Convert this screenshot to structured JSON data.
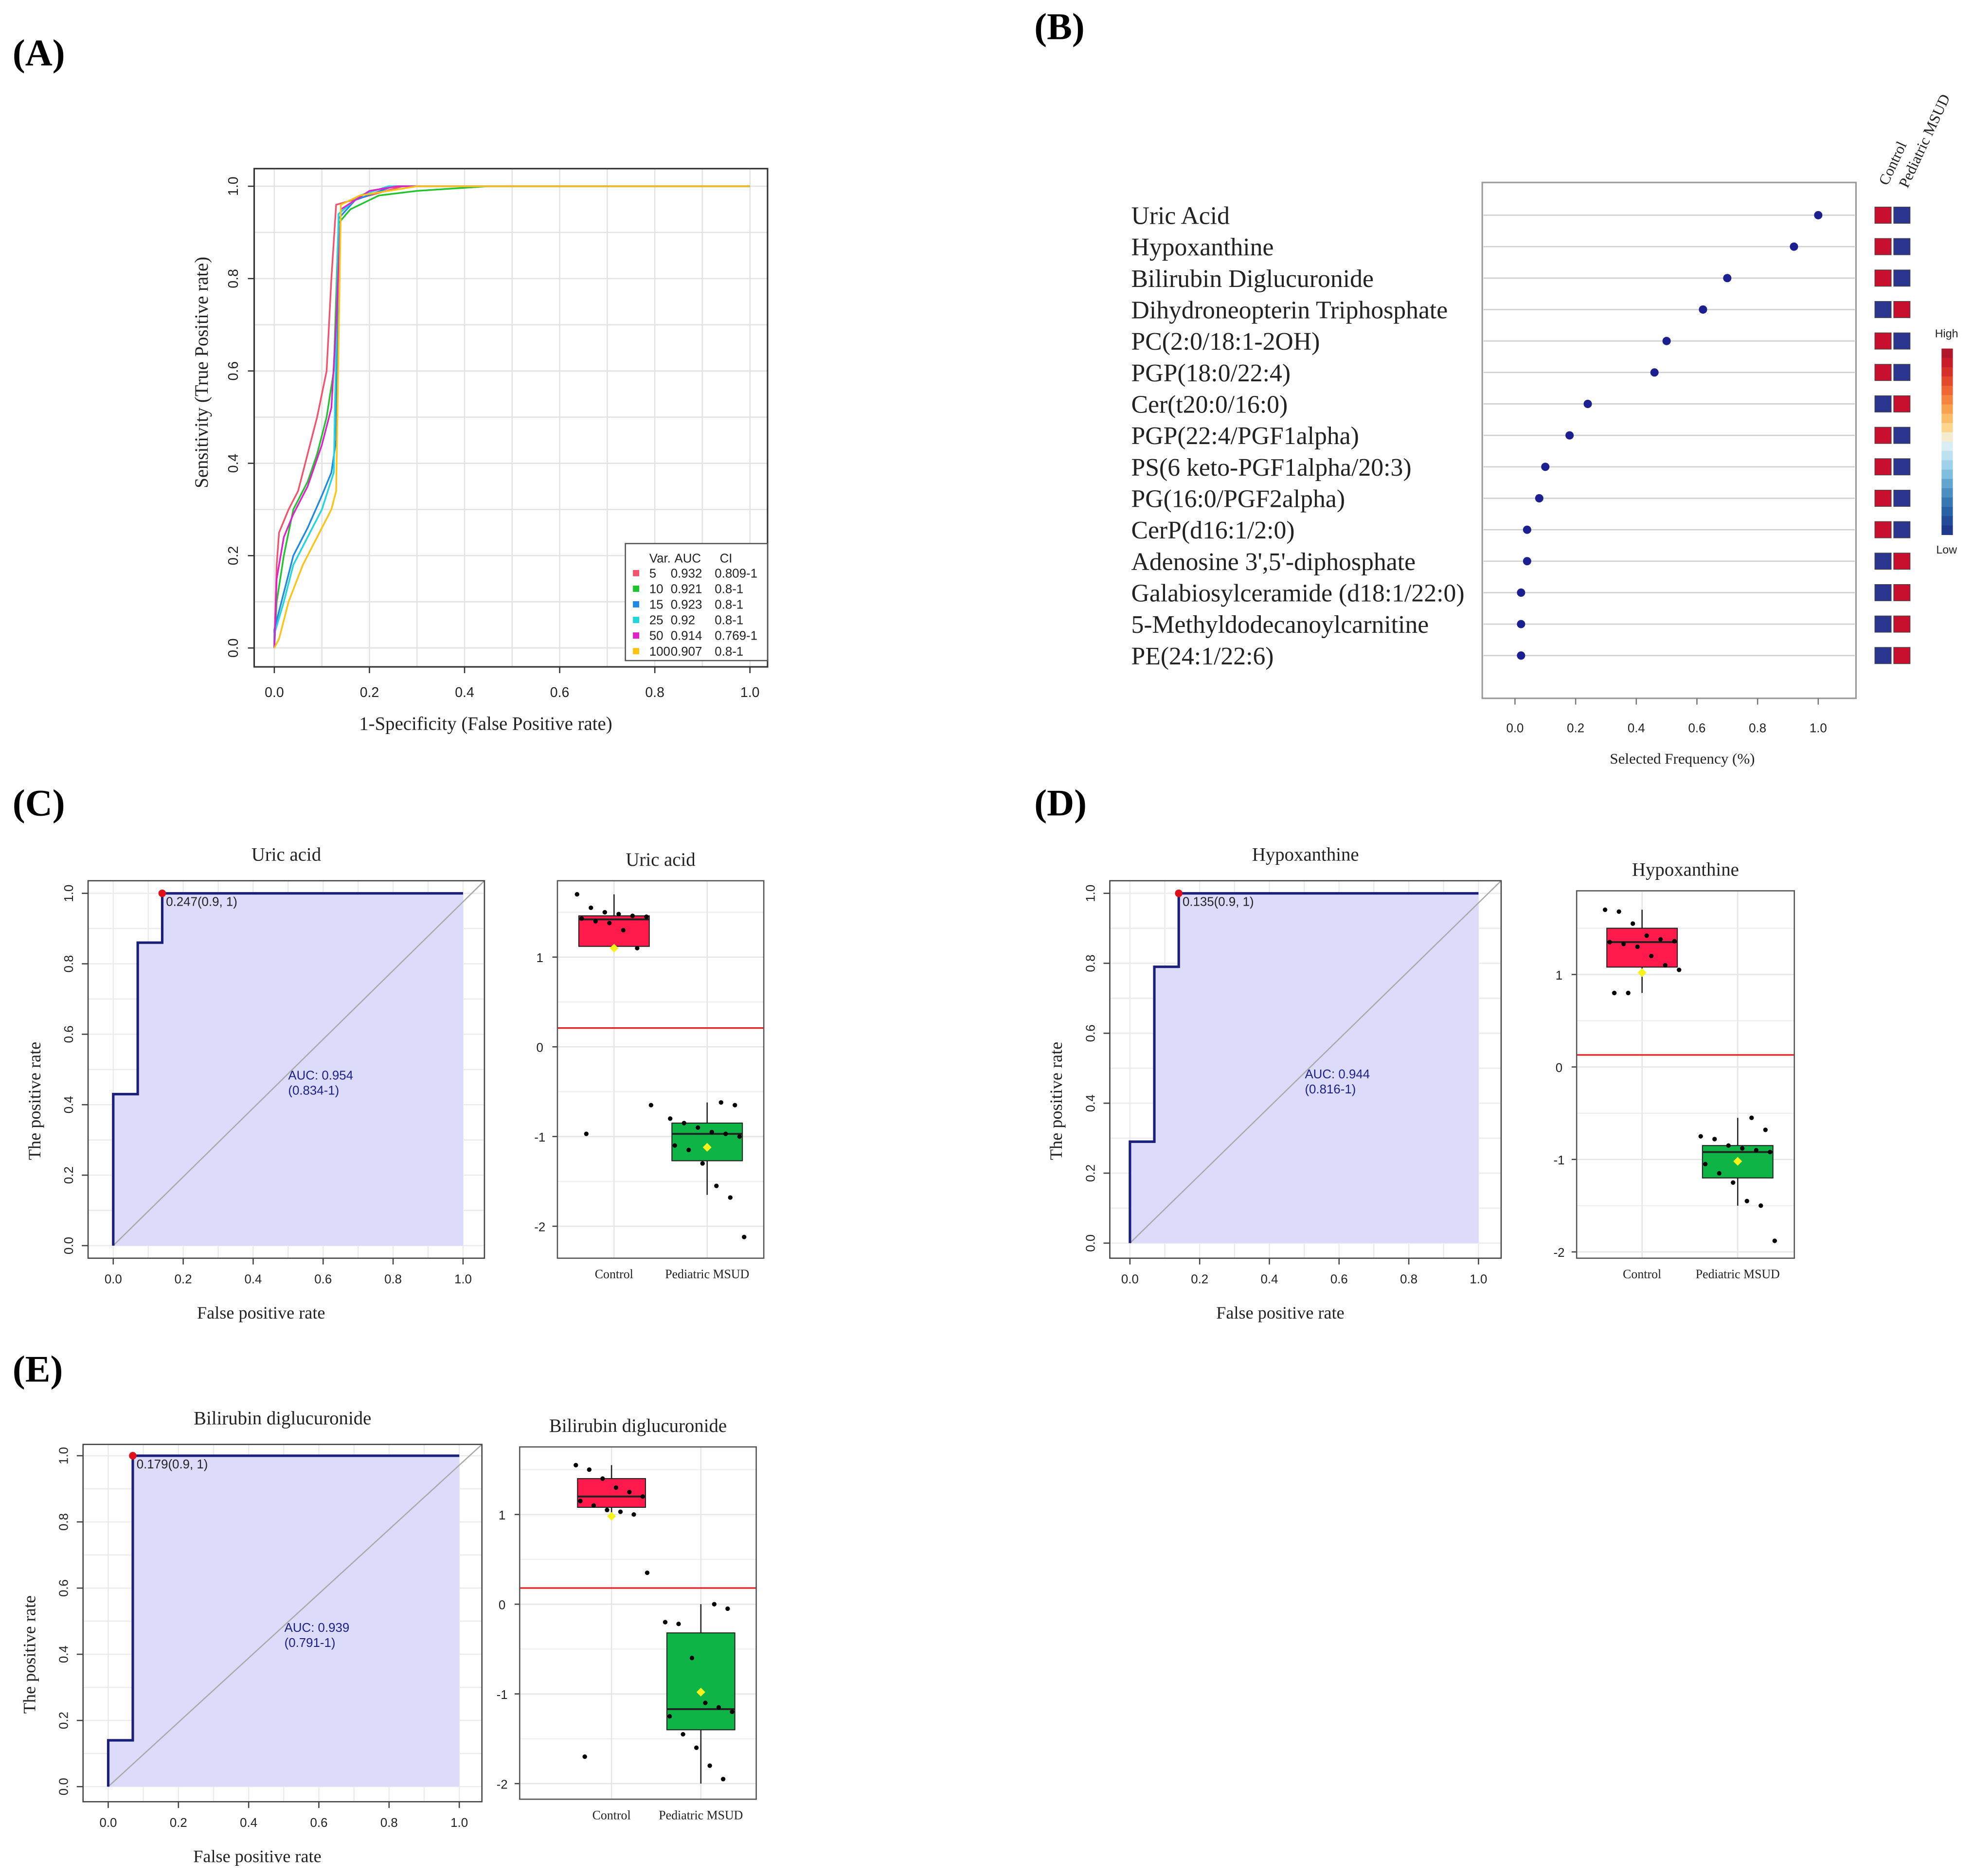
{
  "panel_labels": [
    "(A)",
    "(B)",
    "(C)",
    "(D)",
    "(E)"
  ],
  "chart_data": [
    {
      "panel": "A",
      "type": "line",
      "xlabel": "1-Specificity (False Positive rate)",
      "ylabel": "Sensitivity (True Positive rate)",
      "xlim": [
        0,
        1
      ],
      "ylim": [
        0,
        1
      ],
      "x_ticks": [
        "0.0",
        "0.2",
        "0.4",
        "0.6",
        "0.8",
        "1.0"
      ],
      "y_ticks": [
        "0.0",
        "0.2",
        "0.4",
        "0.6",
        "0.8",
        "1.0"
      ],
      "grid": true,
      "legend": {
        "placement": "bottom-right",
        "header": [
          "Var.",
          "AUC",
          "CI"
        ],
        "entries": [
          {
            "var": "5",
            "auc": "0.932",
            "ci": "0.809-1",
            "color": "#f4516c"
          },
          {
            "var": "10",
            "auc": "0.921",
            "ci": "0.8-1",
            "color": "#1fc42e"
          },
          {
            "var": "15",
            "auc": "0.923",
            "ci": "0.8-1",
            "color": "#1e88e5"
          },
          {
            "var": "25",
            "auc": "0.92",
            "ci": "0.8-1",
            "color": "#1ed6dc"
          },
          {
            "var": "50",
            "auc": "0.914",
            "ci": "0.769-1",
            "color": "#e020c8"
          },
          {
            "var": "100",
            "auc": "0.907",
            "ci": "0.8-1",
            "color": "#ffc20e"
          }
        ]
      },
      "series": [
        {
          "name": "5",
          "points": [
            [
              0,
              0
            ],
            [
              0.005,
              0.18
            ],
            [
              0.01,
              0.25
            ],
            [
              0.03,
              0.3
            ],
            [
              0.05,
              0.34
            ],
            [
              0.07,
              0.42
            ],
            [
              0.09,
              0.5
            ],
            [
              0.11,
              0.6
            ],
            [
              0.12,
              0.8
            ],
            [
              0.13,
              0.96
            ],
            [
              0.2,
              0.98
            ],
            [
              0.27,
              1
            ],
            [
              1,
              1
            ]
          ]
        },
        {
          "name": "10",
          "points": [
            [
              0,
              0
            ],
            [
              0.005,
              0.1
            ],
            [
              0.02,
              0.2
            ],
            [
              0.04,
              0.3
            ],
            [
              0.07,
              0.36
            ],
            [
              0.09,
              0.42
            ],
            [
              0.11,
              0.5
            ],
            [
              0.125,
              0.6
            ],
            [
              0.135,
              0.92
            ],
            [
              0.16,
              0.95
            ],
            [
              0.22,
              0.98
            ],
            [
              0.3,
              0.99
            ],
            [
              0.45,
              1
            ],
            [
              1,
              1
            ]
          ]
        },
        {
          "name": "15",
          "points": [
            [
              0,
              0
            ],
            [
              0,
              0.04
            ],
            [
              0.02,
              0.12
            ],
            [
              0.04,
              0.2
            ],
            [
              0.07,
              0.26
            ],
            [
              0.1,
              0.33
            ],
            [
              0.12,
              0.38
            ],
            [
              0.13,
              0.45
            ],
            [
              0.135,
              0.93
            ],
            [
              0.17,
              0.97
            ],
            [
              0.25,
              1
            ],
            [
              1,
              1
            ]
          ]
        },
        {
          "name": "25",
          "points": [
            [
              0,
              0
            ],
            [
              0,
              0.03
            ],
            [
              0.02,
              0.1
            ],
            [
              0.04,
              0.18
            ],
            [
              0.07,
              0.24
            ],
            [
              0.1,
              0.3
            ],
            [
              0.125,
              0.38
            ],
            [
              0.135,
              0.94
            ],
            [
              0.18,
              0.98
            ],
            [
              0.24,
              1
            ],
            [
              1,
              1
            ]
          ]
        },
        {
          "name": "50",
          "points": [
            [
              0,
              0
            ],
            [
              0.005,
              0.15
            ],
            [
              0.02,
              0.24
            ],
            [
              0.04,
              0.29
            ],
            [
              0.07,
              0.35
            ],
            [
              0.1,
              0.44
            ],
            [
              0.12,
              0.52
            ],
            [
              0.13,
              0.7
            ],
            [
              0.14,
              0.95
            ],
            [
              0.2,
              0.99
            ],
            [
              0.26,
              1
            ],
            [
              1,
              1
            ]
          ]
        },
        {
          "name": "100",
          "points": [
            [
              0,
              0
            ],
            [
              0.01,
              0.02
            ],
            [
              0.03,
              0.1
            ],
            [
              0.06,
              0.18
            ],
            [
              0.09,
              0.24
            ],
            [
              0.12,
              0.3
            ],
            [
              0.13,
              0.34
            ],
            [
              0.14,
              0.96
            ],
            [
              0.18,
              0.98
            ],
            [
              0.3,
              1
            ],
            [
              1,
              1
            ]
          ]
        }
      ]
    },
    {
      "panel": "B",
      "type": "scatter",
      "xlabel": "Selected Frequency (%)",
      "xlim": [
        0,
        1
      ],
      "x_ticks": [
        "0.0",
        "0.2",
        "0.4",
        "0.6",
        "0.8",
        "1.0"
      ],
      "features": [
        "Uric Acid",
        "Hypoxanthine",
        "Bilirubin  Diglucuronide",
        "Dihydroneopterin Triphosphate",
        "PC(2:0/18:1-2OH)",
        "PGP(18:0/22:4)",
        "Cer(t20:0/16:0)",
        "PGP(22:4/PGF1alpha)",
        "PS(6 keto-PGF1alpha/20:3)",
        "PG(16:0/PGF2alpha)",
        "CerP(d16:1/2:0)",
        "Adenosine 3',5'-diphosphate",
        "Galabiosylceramide (d18:1/22:0)",
        "5-Methyldodecanoylcarnitine",
        "PE(24:1/22:6)"
      ],
      "frequencies": [
        1.0,
        0.92,
        0.7,
        0.62,
        0.5,
        0.46,
        0.24,
        0.18,
        0.1,
        0.08,
        0.04,
        0.04,
        0.02,
        0.02,
        0.02
      ],
      "heatmap_columns": [
        "Control",
        "Pediatric MSUD"
      ],
      "heatmap": [
        [
          "high",
          "low"
        ],
        [
          "high",
          "low"
        ],
        [
          "high",
          "low"
        ],
        [
          "low",
          "high"
        ],
        [
          "high",
          "low"
        ],
        [
          "high",
          "low"
        ],
        [
          "low",
          "high"
        ],
        [
          "high",
          "low"
        ],
        [
          "high",
          "low"
        ],
        [
          "high",
          "low"
        ],
        [
          "high",
          "low"
        ],
        [
          "low",
          "high"
        ],
        [
          "low",
          "high"
        ],
        [
          "low",
          "high"
        ],
        [
          "low",
          "high"
        ]
      ],
      "colorbar": {
        "high": "High",
        "low": "Low",
        "high_color": "#c8102e",
        "low_color": "#2a3590"
      }
    },
    {
      "panel": "C",
      "type": "line",
      "title": "Uric acid",
      "xlabel": "False positive rate",
      "ylabel": "The positive rate",
      "x_ticks": [
        "0.0",
        "0.2",
        "0.4",
        "0.6",
        "0.8",
        "1.0"
      ],
      "y_ticks": [
        "0.0",
        "0.2",
        "0.4",
        "0.6",
        "0.8",
        "1.0"
      ],
      "curve": [
        [
          0,
          0
        ],
        [
          0,
          0.43
        ],
        [
          0.07,
          0.43
        ],
        [
          0.07,
          0.86
        ],
        [
          0.14,
          0.86
        ],
        [
          0.14,
          1
        ],
        [
          1,
          1
        ]
      ],
      "cutoff_point": [
        0.14,
        1
      ],
      "cutoff_label": "0.247(0.9, 1)",
      "auc_label": "AUC: 0.954",
      "ci_label": "(0.834-1)"
    },
    {
      "panel": "C",
      "type": "box",
      "title": "Uric acid",
      "categories": [
        "Control",
        "Pediatric MSUD"
      ],
      "y_ticks": [
        "1",
        "0",
        "-1",
        "-2"
      ],
      "y_tick_values": [
        1,
        0,
        -1,
        -2
      ],
      "threshold": 0.21,
      "groups": [
        {
          "q1": 1.12,
          "median": 1.42,
          "q3": 1.46,
          "whisker_low": 1.08,
          "whisker_high": 1.7,
          "mean": 1.1,
          "color": "#ff1a4b",
          "points": [
            1.7,
            1.55,
            1.5,
            1.48,
            1.46,
            1.45,
            1.43,
            1.4,
            1.38,
            1.3,
            1.1,
            -0.65,
            -0.97
          ]
        },
        {
          "q1": -1.27,
          "median": -0.97,
          "q3": -0.85,
          "whisker_low": -1.65,
          "whisker_high": -0.62,
          "mean": -1.12,
          "color": "#0fb446",
          "points": [
            -0.62,
            -0.65,
            -0.8,
            -0.85,
            -0.9,
            -0.95,
            -0.97,
            -1.0,
            -1.1,
            -1.15,
            -1.3,
            -1.55,
            -1.68,
            -2.12
          ]
        }
      ]
    },
    {
      "panel": "D",
      "type": "line",
      "title": "Hypoxanthine",
      "xlabel": "False positive rate",
      "ylabel": "The positive rate",
      "x_ticks": [
        "0.0",
        "0.2",
        "0.4",
        "0.6",
        "0.8",
        "1.0"
      ],
      "y_ticks": [
        "0.0",
        "0.2",
        "0.4",
        "0.6",
        "0.8",
        "1.0"
      ],
      "curve": [
        [
          0,
          0
        ],
        [
          0,
          0.29
        ],
        [
          0.07,
          0.29
        ],
        [
          0.07,
          0.79
        ],
        [
          0.14,
          0.79
        ],
        [
          0.14,
          1
        ],
        [
          1,
          1
        ]
      ],
      "cutoff_point": [
        0.14,
        1
      ],
      "cutoff_label": "0.135(0.9, 1)",
      "auc_label": "AUC: 0.944",
      "ci_label": "(0.816-1)"
    },
    {
      "panel": "D",
      "type": "box",
      "title": "Hypoxanthine",
      "categories": [
        "Control",
        "Pediatric MSUD"
      ],
      "y_ticks": [
        "1",
        "0",
        "-1",
        "-2"
      ],
      "y_tick_values": [
        1,
        0,
        -1,
        -2
      ],
      "threshold": 0.13,
      "groups": [
        {
          "q1": 1.08,
          "median": 1.35,
          "q3": 1.5,
          "whisker_low": 0.8,
          "whisker_high": 1.7,
          "mean": 1.02,
          "color": "#ff1a4b",
          "points": [
            1.7,
            1.68,
            1.55,
            1.42,
            1.38,
            1.36,
            1.35,
            1.33,
            1.3,
            1.2,
            1.1,
            1.05,
            0.8,
            0.8
          ]
        },
        {
          "q1": -1.2,
          "median": -0.92,
          "q3": -0.85,
          "whisker_low": -1.5,
          "whisker_high": -0.55,
          "mean": -1.02,
          "color": "#0fb446",
          "points": [
            -0.55,
            -0.68,
            -0.75,
            -0.78,
            -0.85,
            -0.88,
            -0.9,
            -0.92,
            -1.05,
            -1.15,
            -1.25,
            -1.45,
            -1.5,
            -1.88
          ]
        }
      ]
    },
    {
      "panel": "E",
      "type": "line",
      "title": "Bilirubin diglucuronide",
      "xlabel": "False positive rate",
      "ylabel": "The positive rate",
      "x_ticks": [
        "0.0",
        "0.2",
        "0.4",
        "0.6",
        "0.8",
        "1.0"
      ],
      "y_ticks": [
        "0.0",
        "0.2",
        "0.4",
        "0.6",
        "0.8",
        "1.0"
      ],
      "curve": [
        [
          0,
          0
        ],
        [
          0,
          0.14
        ],
        [
          0.07,
          0.14
        ],
        [
          0.07,
          1
        ],
        [
          1,
          1
        ]
      ],
      "cutoff_point": [
        0.07,
        1
      ],
      "cutoff_label": "0.179(0.9, 1)",
      "auc_label": "AUC: 0.939",
      "ci_label": "(0.791-1)"
    },
    {
      "panel": "E",
      "type": "box",
      "title": "Bilirubin diglucuronide",
      "categories": [
        "Control",
        "Pediatric MSUD"
      ],
      "y_ticks": [
        "1",
        "0",
        "-1",
        "-2"
      ],
      "y_tick_values": [
        1,
        0,
        -1,
        -2
      ],
      "threshold": 0.18,
      "groups": [
        {
          "q1": 1.08,
          "median": 1.2,
          "q3": 1.4,
          "whisker_low": 1.0,
          "whisker_high": 1.55,
          "mean": 0.98,
          "color": "#ff1a4b",
          "points": [
            1.55,
            1.5,
            1.4,
            1.3,
            1.25,
            1.2,
            1.15,
            1.1,
            1.05,
            1.03,
            1.0,
            0.35,
            -1.7
          ]
        },
        {
          "q1": -1.4,
          "median": -1.17,
          "q3": -0.32,
          "whisker_low": -2.0,
          "whisker_high": 0.0,
          "mean": -0.98,
          "color": "#0fb446",
          "points": [
            0.0,
            -0.05,
            -0.2,
            -0.22,
            -0.6,
            -1.1,
            -1.15,
            -1.2,
            -1.25,
            -1.45,
            -1.6,
            -1.8,
            -1.95
          ]
        }
      ]
    }
  ]
}
